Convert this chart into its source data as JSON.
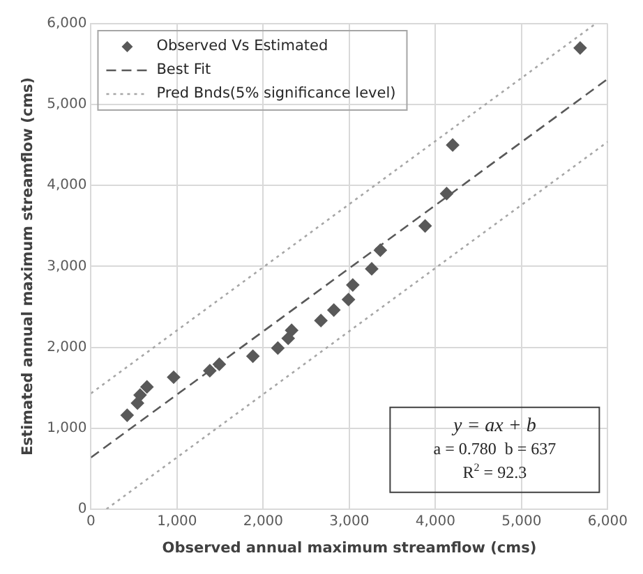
{
  "chart_data": {
    "type": "scatter",
    "xlabel": "Observed annual maximum streamflow (cms)",
    "ylabel": "Estimated annual maximum streamflow (cms)",
    "xlim": [
      0,
      6000
    ],
    "xticks": [
      {
        "value": 0,
        "label": "0"
      },
      {
        "value": 1000,
        "label": "1,000"
      },
      {
        "value": 2000,
        "label": "2,000"
      },
      {
        "value": 3000,
        "label": "3,000"
      },
      {
        "value": 4000,
        "label": "4,000"
      },
      {
        "value": 5000,
        "label": "5,000"
      },
      {
        "value": 6000,
        "label": "6,000"
      }
    ],
    "ylim": [
      0,
      6000
    ],
    "yticks": [
      {
        "value": 0,
        "label": "0"
      },
      {
        "value": 1000,
        "label": "1,000"
      },
      {
        "value": 2000,
        "label": "2,000"
      },
      {
        "value": 3000,
        "label": "3,000"
      },
      {
        "value": 4000,
        "label": "4,000"
      },
      {
        "value": 5000,
        "label": "5,000"
      },
      {
        "value": 6000,
        "label": "6,000"
      }
    ],
    "grid": true,
    "legend": "top left",
    "series": [
      {
        "name": "Observed Vs Estimated",
        "type": "scatter",
        "color": "#595959",
        "marker": "diamond",
        "x": [
          420,
          540,
          570,
          650,
          960,
          1380,
          1490,
          1880,
          2170,
          2290,
          2330,
          2670,
          2820,
          2990,
          3040,
          3260,
          3360,
          3880,
          4130,
          4200,
          5680
        ],
        "values": [
          1160,
          1310,
          1410,
          1510,
          1630,
          1710,
          1790,
          1890,
          1990,
          2110,
          2210,
          2330,
          2460,
          2590,
          2770,
          2970,
          3200,
          3500,
          3900,
          4500,
          5700
        ]
      },
      {
        "name": "Best Fit",
        "type": "line",
        "color": "#595959",
        "line_style": "dashed",
        "marker": "none",
        "x": [
          0,
          6000
        ],
        "values": [
          637,
          5317
        ]
      },
      {
        "name": "Pred Bnds(5% significance level)",
        "type": "line",
        "color": "#a6a6a6",
        "line_style": "dotted",
        "marker": "none",
        "x": [
          0,
          5860
        ],
        "values": [
          1430,
          6000
        ]
      },
      {
        "type": "line",
        "color": "#a6a6a6",
        "line_style": "dotted",
        "marker": "none",
        "x": [
          180,
          6000
        ],
        "values": [
          0,
          4540
        ]
      }
    ],
    "annotations": [
      "y = ax + b",
      "a = 0.780  b = 637",
      "R$^{2}$ = 92.3"
    ]
  }
}
